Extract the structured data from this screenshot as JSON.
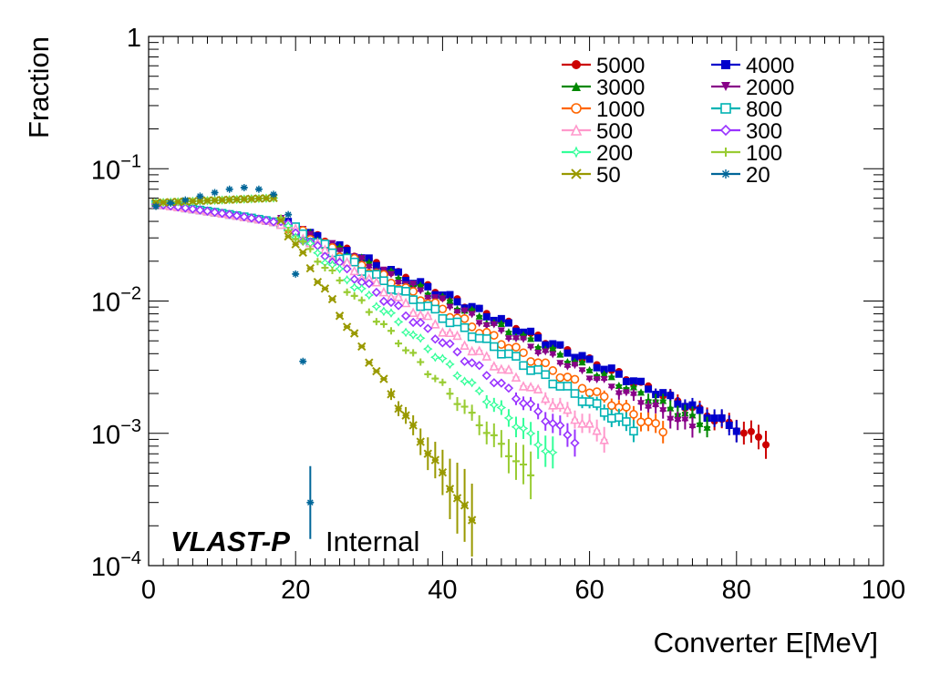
{
  "chart_data": {
    "type": "scatter",
    "title": "",
    "xlabel": "Converter E[MeV]",
    "ylabel": "Fraction",
    "xlim": [
      0,
      100
    ],
    "ylim": [
      0.0001,
      1
    ],
    "yscale": "log",
    "x_ticks": [
      "0",
      "20",
      "40",
      "60",
      "80",
      "100"
    ],
    "y_ticks": [
      {
        "base": "10",
        "exp": "−4"
      },
      {
        "base": "10",
        "exp": "−3"
      },
      {
        "base": "10",
        "exp": "−2"
      },
      {
        "base": "10",
        "exp": "−1"
      },
      {
        "base": "1",
        "exp": ""
      }
    ],
    "legend_position": "top-right",
    "annotation": {
      "bold": "VLAST-P",
      "normal": "Internal"
    },
    "series": [
      {
        "name": "5000",
        "color": "#cc0000",
        "marker": "circle-filled",
        "cutoff": 84,
        "slope": 0.058
      },
      {
        "name": "4000",
        "color": "#0000cc",
        "marker": "square-filled",
        "cutoff": 80,
        "slope": 0.058
      },
      {
        "name": "3000",
        "color": "#008800",
        "marker": "triangle-up-filled",
        "cutoff": 76,
        "slope": 0.061
      },
      {
        "name": "2000",
        "color": "#880088",
        "marker": "triangle-down-filled",
        "cutoff": 74,
        "slope": 0.064
      },
      {
        "name": "1000",
        "color": "#ff6600",
        "marker": "circle-open",
        "cutoff": 70,
        "slope": 0.07
      },
      {
        "name": "800",
        "color": "#00b3b3",
        "marker": "square-open",
        "cutoff": 66,
        "slope": 0.075
      },
      {
        "name": "500",
        "color": "#ff99cc",
        "marker": "triangle-up-open",
        "cutoff": 62,
        "slope": 0.085
      },
      {
        "name": "300",
        "color": "#9933ff",
        "marker": "diamond-open",
        "cutoff": 58,
        "slope": 0.095
      },
      {
        "name": "200",
        "color": "#33ff99",
        "marker": "star",
        "cutoff": 55,
        "slope": 0.11
      },
      {
        "name": "100",
        "color": "#99cc33",
        "marker": "cross",
        "cutoff": 52,
        "slope": 0.13
      },
      {
        "name": "50",
        "color": "#999900",
        "marker": "x",
        "cutoff": 44,
        "slope": 0.2
      },
      {
        "name": "20",
        "color": "#006699",
        "marker": "asterisk",
        "cutoff": 23,
        "slope": 0.0
      }
    ],
    "special_points_20": [
      {
        "x": 1,
        "y": 0.052
      },
      {
        "x": 3,
        "y": 0.055
      },
      {
        "x": 5,
        "y": 0.058
      },
      {
        "x": 7,
        "y": 0.062
      },
      {
        "x": 9,
        "y": 0.066
      },
      {
        "x": 11,
        "y": 0.07
      },
      {
        "x": 13,
        "y": 0.072
      },
      {
        "x": 15,
        "y": 0.07
      },
      {
        "x": 17,
        "y": 0.064
      },
      {
        "x": 19,
        "y": 0.045
      },
      {
        "x": 20,
        "y": 0.016
      },
      {
        "x": 21,
        "y": 0.0035
      },
      {
        "x": 22,
        "y": 0.0003
      }
    ]
  }
}
